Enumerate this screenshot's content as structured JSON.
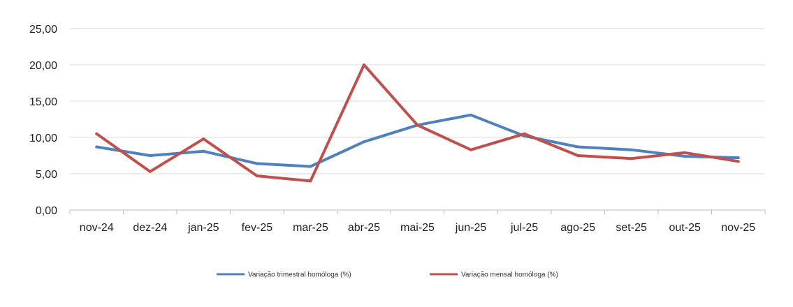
{
  "chart_data": {
    "type": "line",
    "title": "",
    "xlabel": "",
    "ylabel": "",
    "ylim": [
      0,
      25
    ],
    "ytick_values": [
      0,
      5,
      10,
      15,
      20,
      25
    ],
    "ytick_labels": [
      "0,00",
      "5,00",
      "10,00",
      "15,00",
      "20,00",
      "25,00"
    ],
    "grid": true,
    "legend_position": "bottom",
    "categories": [
      "nov-24",
      "dez-24",
      "jan-25",
      "fev-25",
      "mar-25",
      "abr-25",
      "mai-25",
      "jun-25",
      "jul-25",
      "ago-25",
      "set-25",
      "out-25",
      "nov-25"
    ],
    "series": [
      {
        "name": "Variação trimestral homóloga (%)",
        "color": "#4F81BD",
        "values": [
          8.7,
          7.5,
          8.1,
          6.4,
          6.0,
          9.4,
          11.7,
          13.1,
          10.2,
          8.7,
          8.3,
          7.4,
          7.2
        ]
      },
      {
        "name": "Variação mensal homóloga (%)",
        "color": "#C0504D",
        "values": [
          10.5,
          5.3,
          9.8,
          4.7,
          4.0,
          20.0,
          11.7,
          8.3,
          10.5,
          7.5,
          7.1,
          7.9,
          6.7
        ]
      }
    ]
  }
}
